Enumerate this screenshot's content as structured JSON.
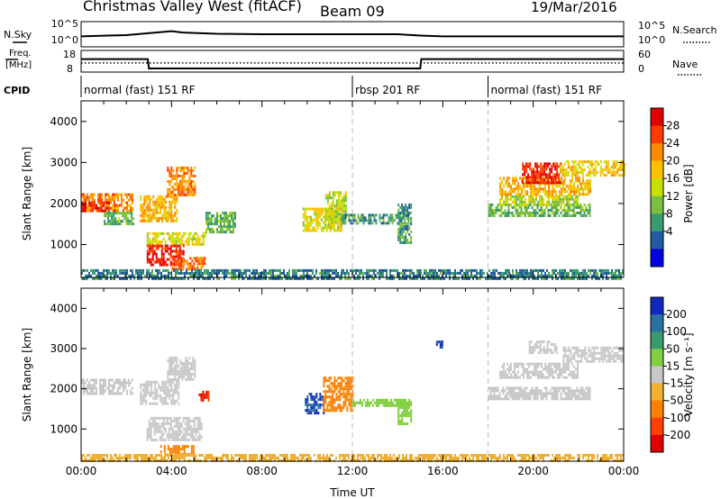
{
  "header": {
    "title": "Christmas Valley West (fitACF)",
    "beam": "Beam 09",
    "date": "19/Mar/2016"
  },
  "strip_labels": {
    "nsky": "N.Sky",
    "nsearch": "N.Search",
    "freq_line1": "Freq.",
    "freq_line2": "[MHz]",
    "nave": "Nave",
    "cpid": "CPID"
  },
  "strip_ticks": {
    "noise_top_left": "10^5",
    "noise_bottom_left": "10^0",
    "noise_top_right": "10^5",
    "noise_bottom_right": "10^0",
    "freq_top": "18",
    "freq_bottom": "8",
    "nave_top": "60",
    "nave_bottom": "0"
  },
  "cpid_segments": [
    {
      "label": "normal (fast) 151 RF",
      "start_hour": 0
    },
    {
      "label": "rbsp 201 RF",
      "start_hour": 12
    },
    {
      "label": "normal (fast) 151 RF",
      "start_hour": 18
    }
  ],
  "power_colorbar": {
    "title": "Power [dB]",
    "ticks": [
      "28",
      "24",
      "20",
      "16",
      "12",
      "8",
      "4"
    ],
    "colors": [
      "#e00000",
      "#ff3a00",
      "#ff8a00",
      "#ffc000",
      "#c8e000",
      "#7ac040",
      "#3a9a70",
      "#205aa0",
      "#0000e0"
    ]
  },
  "velocity_colorbar": {
    "title": "Velocity [m s⁻¹]",
    "ticks": [
      "200",
      "100",
      "50",
      "15",
      "-15",
      "-50",
      "-100",
      "-200"
    ],
    "colors": [
      "#1028c0",
      "#2a70a0",
      "#3a9a70",
      "#80d040",
      "#c8c8c8",
      "#f0b030",
      "#ff8000",
      "#ff4000",
      "#e00000"
    ]
  },
  "chart_data": [
    {
      "type": "line",
      "panel": "noise",
      "x_hours": [
        0,
        2,
        4,
        4.5,
        6,
        8,
        10,
        12,
        14,
        15,
        16,
        18,
        20,
        22,
        24
      ],
      "series": [
        {
          "name": "N.Sky",
          "values": [
            2.0,
            2.3,
            3.2,
            2.9,
            2.6,
            2.5,
            2.5,
            2.5,
            2.5,
            2.2,
            2.0,
            2.0,
            2.0,
            2.0,
            2.0
          ]
        }
      ],
      "ylim": [
        0,
        5
      ]
    },
    {
      "type": "line",
      "panel": "frequency",
      "x_hours": [
        0,
        2.95,
        3.0,
        15.0,
        15.05,
        24
      ],
      "series": [
        {
          "name": "Freq.",
          "values": [
            14.2,
            14.2,
            9.0,
            9.0,
            14.2,
            14.2
          ]
        },
        {
          "name": "Nave",
          "values": [
            25,
            25,
            25,
            25,
            25,
            25
          ]
        }
      ],
      "ylim": [
        8,
        18
      ]
    },
    {
      "type": "heatmap",
      "panel": "power",
      "xlabel": "",
      "ylabel": "Slant Range [km]",
      "xlim": [
        0,
        24
      ],
      "ylim": [
        200,
        4500
      ],
      "yticks": [
        1000,
        2000,
        3000,
        4000
      ],
      "regions": [
        {
          "t0": 0.0,
          "t1": 2.3,
          "r0": 1850,
          "r1": 2250,
          "value": 22
        },
        {
          "t0": 0.0,
          "t1": 1.5,
          "r0": 1850,
          "r1": 2050,
          "value": 28
        },
        {
          "t0": 1.0,
          "t1": 2.3,
          "r0": 1500,
          "r1": 1800,
          "value": 10
        },
        {
          "t0": 2.6,
          "t1": 4.2,
          "r0": 1600,
          "r1": 2200,
          "value": 20
        },
        {
          "t0": 3.8,
          "t1": 5.0,
          "r0": 2200,
          "r1": 2900,
          "value": 22
        },
        {
          "t0": 2.9,
          "t1": 5.5,
          "r0": 1000,
          "r1": 1300,
          "value": 16
        },
        {
          "t0": 2.9,
          "t1": 4.5,
          "r0": 500,
          "r1": 1000,
          "value": 28
        },
        {
          "t0": 4.0,
          "t1": 5.5,
          "r0": 400,
          "r1": 700,
          "value": 24
        },
        {
          "t0": 5.5,
          "t1": 6.8,
          "r0": 1300,
          "r1": 1800,
          "value": 10
        },
        {
          "t0": 9.8,
          "t1": 11.5,
          "r0": 1350,
          "r1": 1900,
          "value": 16
        },
        {
          "t0": 10.8,
          "t1": 11.7,
          "r0": 1600,
          "r1": 2300,
          "value": 14
        },
        {
          "t0": 11.5,
          "t1": 14.5,
          "r0": 1550,
          "r1": 1750,
          "value": 8
        },
        {
          "t0": 14.0,
          "t1": 14.6,
          "r0": 1050,
          "r1": 2000,
          "value": 8
        },
        {
          "t0": 18.0,
          "t1": 22.5,
          "r0": 1700,
          "r1": 2000,
          "value": 10
        },
        {
          "t0": 18.5,
          "t1": 22.0,
          "r0": 2000,
          "r1": 2200,
          "value": 14
        },
        {
          "t0": 18.5,
          "t1": 22.5,
          "r0": 2200,
          "r1": 2650,
          "value": 20
        },
        {
          "t0": 19.5,
          "t1": 21.2,
          "r0": 2500,
          "r1": 3000,
          "value": 28
        },
        {
          "t0": 21.2,
          "t1": 24.0,
          "r0": 2700,
          "r1": 3050,
          "value": 18
        },
        {
          "t0": 0.0,
          "t1": 24.0,
          "r0": 200,
          "r1": 400,
          "value": 6
        }
      ]
    },
    {
      "type": "heatmap",
      "panel": "velocity",
      "xlabel": "Time UT",
      "ylabel": "Slant Range [km]",
      "xlim": [
        0,
        24
      ],
      "ylim": [
        200,
        4500
      ],
      "yticks": [
        1000,
        2000,
        3000,
        4000
      ],
      "xticks": [
        "00:00",
        "04:00",
        "08:00",
        "12:00",
        "16:00",
        "20:00",
        "00:00"
      ],
      "regions": [
        {
          "t0": 0.0,
          "t1": 2.3,
          "r0": 1900,
          "r1": 2250,
          "value": 0
        },
        {
          "t0": 2.6,
          "t1": 4.3,
          "r0": 1600,
          "r1": 2200,
          "value": 0
        },
        {
          "t0": 3.8,
          "t1": 5.0,
          "r0": 2200,
          "r1": 2800,
          "value": 0
        },
        {
          "t0": 2.9,
          "t1": 5.3,
          "r0": 700,
          "r1": 1300,
          "value": 0
        },
        {
          "t0": 3.5,
          "t1": 5.0,
          "r0": 350,
          "r1": 600,
          "value": -60
        },
        {
          "t0": 5.2,
          "t1": 5.6,
          "r0": 1700,
          "r1": 1950,
          "value": -200
        },
        {
          "t0": 9.9,
          "t1": 10.7,
          "r0": 1400,
          "r1": 1900,
          "value": 200
        },
        {
          "t0": 10.7,
          "t1": 12.0,
          "r0": 1450,
          "r1": 2300,
          "value": -70
        },
        {
          "t0": 12.0,
          "t1": 14.5,
          "r0": 1550,
          "r1": 1750,
          "value": 30
        },
        {
          "t0": 14.0,
          "t1": 14.6,
          "r0": 1100,
          "r1": 1700,
          "value": 30
        },
        {
          "t0": 18.0,
          "t1": 22.5,
          "r0": 1750,
          "r1": 2050,
          "value": 0
        },
        {
          "t0": 18.5,
          "t1": 22.0,
          "r0": 2250,
          "r1": 2650,
          "value": 0
        },
        {
          "t0": 19.8,
          "t1": 21.0,
          "r0": 2900,
          "r1": 3200,
          "value": 0
        },
        {
          "t0": 21.3,
          "t1": 24.0,
          "r0": 2700,
          "r1": 3050,
          "value": 0
        },
        {
          "t0": 15.7,
          "t1": 16.0,
          "r0": 3050,
          "r1": 3200,
          "value": 200
        },
        {
          "t0": 0.0,
          "t1": 24.0,
          "r0": 200,
          "r1": 380,
          "value": -30
        }
      ]
    }
  ]
}
